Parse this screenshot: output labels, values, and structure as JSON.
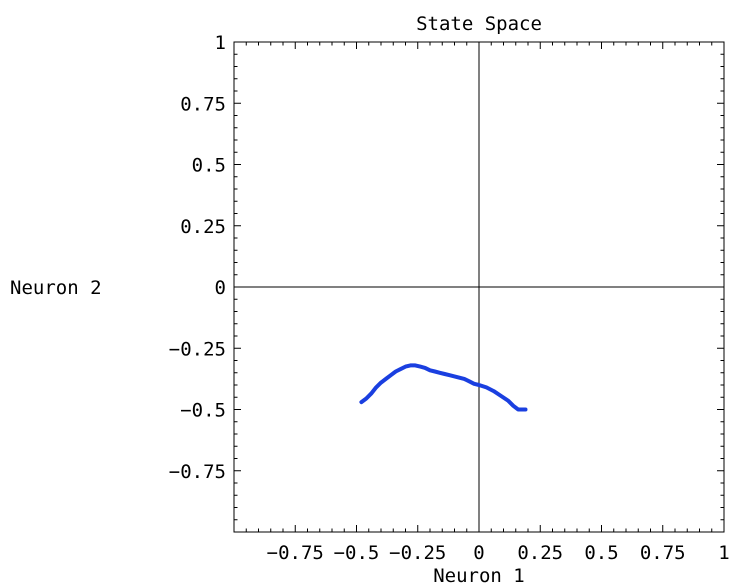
{
  "chart_data": {
    "type": "line",
    "title": "State Space",
    "xlabel": "Neuron 1",
    "ylabel": "Neuron 2",
    "xlim": [
      -1,
      1
    ],
    "ylim": [
      -1,
      1
    ],
    "xticks": [
      {
        "value": -0.75,
        "label": "-0.75"
      },
      {
        "value": -0.5,
        "label": "-0.5"
      },
      {
        "value": -0.25,
        "label": "-0.25"
      },
      {
        "value": 0,
        "label": "0"
      },
      {
        "value": 0.25,
        "label": "0.25"
      },
      {
        "value": 0.5,
        "label": "0.5"
      },
      {
        "value": 0.75,
        "label": "0.75"
      },
      {
        "value": 1,
        "label": "1"
      }
    ],
    "yticks": [
      {
        "value": 1,
        "label": "1"
      },
      {
        "value": 0.75,
        "label": "0.75"
      },
      {
        "value": 0.5,
        "label": "0.5"
      },
      {
        "value": 0.25,
        "label": "0.25"
      },
      {
        "value": 0,
        "label": "0"
      },
      {
        "value": -0.25,
        "label": "-0.25"
      },
      {
        "value": -0.5,
        "label": "-0.5"
      },
      {
        "value": -0.75,
        "label": "-0.75"
      }
    ],
    "axes_at_origin": true,
    "grid": false,
    "series": [
      {
        "color": "#1a3fe0",
        "points": [
          [
            -0.48,
            -0.47
          ],
          [
            -0.46,
            -0.455
          ],
          [
            -0.44,
            -0.435
          ],
          [
            -0.42,
            -0.41
          ],
          [
            -0.4,
            -0.39
          ],
          [
            -0.38,
            -0.375
          ],
          [
            -0.36,
            -0.36
          ],
          [
            -0.34,
            -0.345
          ],
          [
            -0.32,
            -0.335
          ],
          [
            -0.3,
            -0.325
          ],
          [
            -0.28,
            -0.32
          ],
          [
            -0.26,
            -0.32
          ],
          [
            -0.24,
            -0.325
          ],
          [
            -0.22,
            -0.33
          ],
          [
            -0.2,
            -0.34
          ],
          [
            -0.18,
            -0.345
          ],
          [
            -0.16,
            -0.35
          ],
          [
            -0.14,
            -0.355
          ],
          [
            -0.12,
            -0.36
          ],
          [
            -0.1,
            -0.365
          ],
          [
            -0.08,
            -0.37
          ],
          [
            -0.06,
            -0.375
          ],
          [
            -0.04,
            -0.385
          ],
          [
            -0.02,
            -0.395
          ],
          [
            0.0,
            -0.4
          ],
          [
            0.03,
            -0.41
          ],
          [
            0.06,
            -0.425
          ],
          [
            0.09,
            -0.445
          ],
          [
            0.12,
            -0.465
          ],
          [
            0.14,
            -0.485
          ],
          [
            0.16,
            -0.5
          ],
          [
            0.19,
            -0.5
          ]
        ]
      }
    ]
  }
}
